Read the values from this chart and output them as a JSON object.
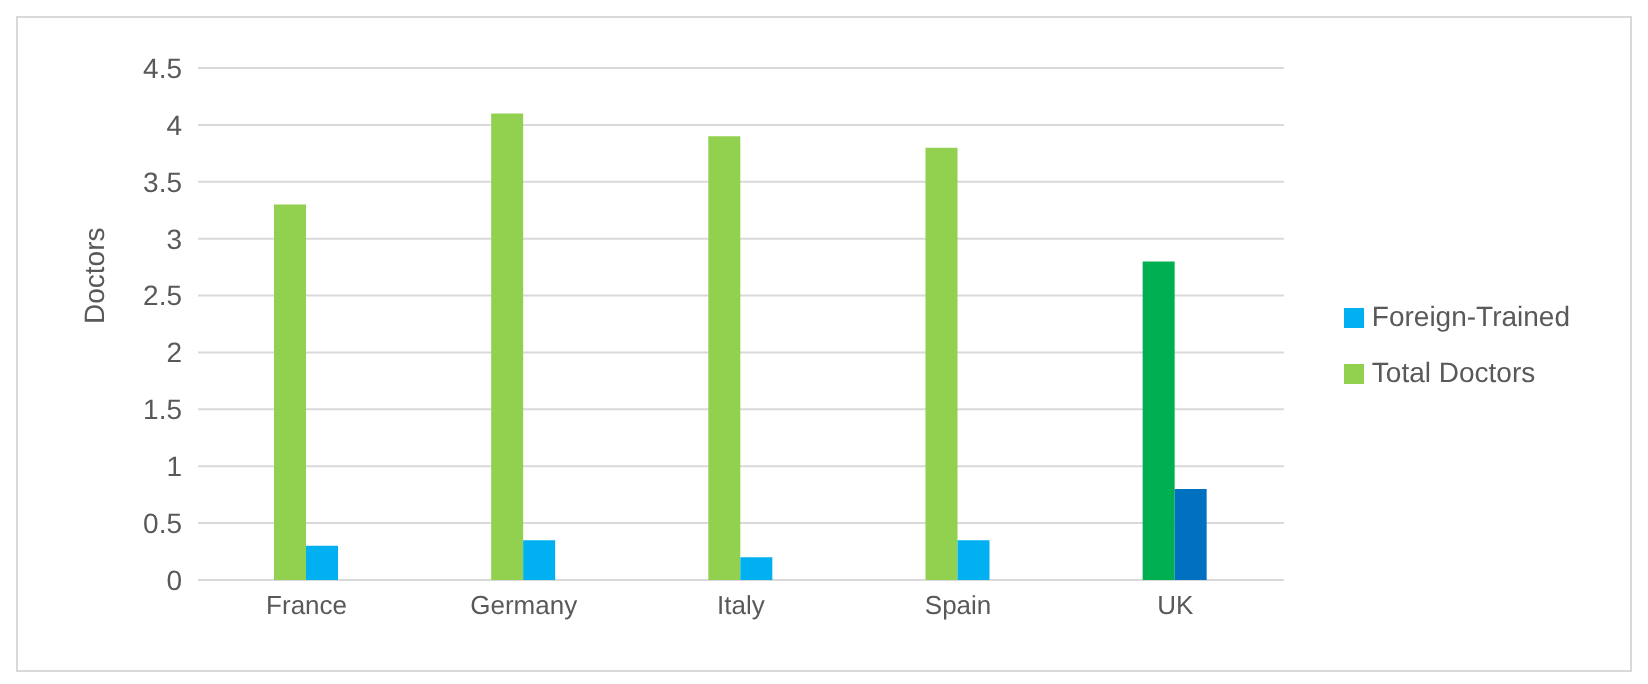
{
  "chart_data": {
    "type": "bar",
    "ylabel": "Doctors",
    "categories": [
      "France",
      "Germany",
      "Italy",
      "Spain",
      "UK"
    ],
    "series": [
      {
        "name": "Total Doctors",
        "color": "#92d050",
        "colors": [
          "#92d050",
          "#92d050",
          "#92d050",
          "#92d050",
          "#00b050"
        ],
        "values": [
          3.3,
          4.1,
          3.9,
          3.8,
          2.8
        ]
      },
      {
        "name": "Foreign-Trained",
        "color": "#00b0f0",
        "colors": [
          "#00b0f0",
          "#00b0f0",
          "#00b0f0",
          "#00b0f0",
          "#0070c0"
        ],
        "values": [
          0.3,
          0.35,
          0.2,
          0.35,
          0.8
        ]
      }
    ],
    "ylim": [
      0,
      4.5
    ],
    "yticks": [
      0,
      0.5,
      1,
      1.5,
      2,
      2.5,
      3,
      3.5,
      4,
      4.5
    ],
    "grid": "y",
    "legend": "right"
  }
}
